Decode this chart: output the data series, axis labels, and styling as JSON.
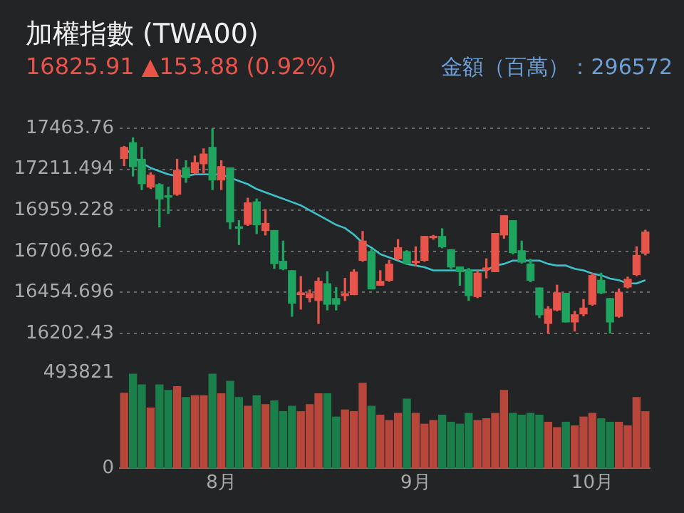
{
  "chart_data": [
    {
      "type": "candlestick",
      "title": "加權指數 (TWA00)",
      "subtitle": "16825.91 ▲153.88 (0.92%)",
      "annotations": [
        "金額（百萬）：296572"
      ],
      "ohlc": [
        [
          17278,
          17352,
          17234,
          17346
        ],
        [
          17375,
          17405,
          17170,
          17228
        ],
        [
          17273,
          17346,
          17087,
          17123
        ],
        [
          17102,
          17190,
          17093,
          17176
        ],
        [
          17117,
          17123,
          16858,
          17029
        ],
        [
          17046,
          17102,
          16940,
          17040
        ],
        [
          17058,
          17273,
          17052,
          17205
        ],
        [
          17220,
          17264,
          17132,
          17161
        ],
        [
          17190,
          17293,
          17184,
          17252
        ],
        [
          17246,
          17337,
          17190,
          17305
        ],
        [
          17346,
          17460,
          17087,
          17146
        ],
        [
          17146,
          17264,
          17087,
          17228
        ],
        [
          17220,
          17220,
          16846,
          16888
        ],
        [
          16858,
          16896,
          16749,
          16849
        ],
        [
          16873,
          17034,
          16867,
          17005
        ],
        [
          17011,
          17029,
          16817,
          16870
        ],
        [
          16835,
          16964,
          16808,
          16879
        ],
        [
          16835,
          16835,
          16602,
          16632
        ],
        [
          16646,
          16770,
          16594,
          16599
        ],
        [
          16588,
          16588,
          16308,
          16388
        ],
        [
          16441,
          16552,
          16352,
          16452
        ],
        [
          16423,
          16470,
          16397,
          16447
        ],
        [
          16405,
          16544,
          16264,
          16523
        ],
        [
          16508,
          16582,
          16347,
          16382
        ],
        [
          16417,
          16485,
          16347,
          16382
        ],
        [
          16435,
          16541,
          16405,
          16447
        ],
        [
          16441,
          16594,
          16441,
          16579
        ],
        [
          16652,
          16829,
          16646,
          16770
        ],
        [
          16705,
          16720,
          16476,
          16476
        ],
        [
          16499,
          16588,
          16499,
          16523
        ],
        [
          16529,
          16652,
          16523,
          16629
        ],
        [
          16661,
          16779,
          16655,
          16729
        ],
        [
          16705,
          16711,
          16626,
          16632
        ],
        [
          16638,
          16735,
          16617,
          16646
        ],
        [
          16652,
          16799,
          16646,
          16799
        ],
        [
          16791,
          16805,
          16782,
          16799
        ],
        [
          16799,
          16846,
          16729,
          16735
        ],
        [
          16717,
          16717,
          16602,
          16611
        ],
        [
          16611,
          16611,
          16499,
          16582
        ],
        [
          16588,
          16602,
          16405,
          16435
        ],
        [
          16429,
          16588,
          16423,
          16573
        ],
        [
          16594,
          16661,
          16544,
          16605
        ],
        [
          16582,
          16817,
          16582,
          16817
        ],
        [
          16808,
          16926,
          16788,
          16926
        ],
        [
          16896,
          16896,
          16691,
          16699
        ],
        [
          16711,
          16770,
          16635,
          16641
        ],
        [
          16629,
          16658,
          16520,
          16529
        ],
        [
          16482,
          16482,
          16300,
          16317
        ],
        [
          16264,
          16367,
          16205,
          16352
        ],
        [
          16347,
          16499,
          16341,
          16452
        ],
        [
          16449,
          16449,
          16273,
          16273
        ],
        [
          16273,
          16338,
          16217,
          16317
        ],
        [
          16323,
          16411,
          16311,
          16358
        ],
        [
          16382,
          16573,
          16376,
          16558
        ],
        [
          16529,
          16573,
          16447,
          16452
        ],
        [
          16417,
          16417,
          16205,
          16273
        ],
        [
          16308,
          16476,
          16302,
          16455
        ],
        [
          16488,
          16549,
          16482,
          16535
        ],
        [
          16564,
          16735,
          16558,
          16682
        ],
        [
          16696,
          16837,
          16685,
          16826
        ]
      ],
      "colors": [
        "#e8534a",
        "#1fa45f",
        "#1fa45f",
        "#e8534a",
        "#1fa45f",
        "#1fa45f",
        "#e8534a",
        "#1fa45f",
        "#e8534a",
        "#e8534a",
        "#1fa45f",
        "#e8534a",
        "#1fa45f",
        "#1fa45f",
        "#e8534a",
        "#1fa45f",
        "#e8534a",
        "#1fa45f",
        "#1fa45f",
        "#1fa45f",
        "#e8534a",
        "#e8534a",
        "#e8534a",
        "#1fa45f",
        "#1fa45f",
        "#e8534a",
        "#e8534a",
        "#e8534a",
        "#1fa45f",
        "#e8534a",
        "#e8534a",
        "#e8534a",
        "#1fa45f",
        "#e8534a",
        "#e8534a",
        "#e8534a",
        "#1fa45f",
        "#1fa45f",
        "#1fa45f",
        "#1fa45f",
        "#e8534a",
        "#e8534a",
        "#e8534a",
        "#e8534a",
        "#1fa45f",
        "#1fa45f",
        "#1fa45f",
        "#1fa45f",
        "#e8534a",
        "#e8534a",
        "#1fa45f",
        "#e8534a",
        "#e8534a",
        "#e8534a",
        "#1fa45f",
        "#1fa45f",
        "#e8534a",
        "#e8534a",
        "#e8534a",
        "#e8534a"
      ],
      "series": [
        {
          "type": "line",
          "color": "#3fc1c9",
          "values": [
            17350,
            17290,
            17250,
            17220,
            17200,
            17180,
            17170,
            17170,
            17180,
            17180,
            17180,
            17180,
            17160,
            17140,
            17120,
            17090,
            17070,
            17050,
            17030,
            17010,
            16990,
            16960,
            16930,
            16900,
            16870,
            16850,
            16810,
            16760,
            16730,
            16690,
            16670,
            16650,
            16630,
            16620,
            16610,
            16590,
            16590,
            16590,
            16590,
            16590,
            16590,
            16590,
            16620,
            16630,
            16650,
            16650,
            16650,
            16650,
            16630,
            16620,
            16620,
            16600,
            16590,
            16570,
            16560,
            16540,
            16530,
            16510,
            16510,
            16530
          ]
        }
      ],
      "ylim": [
        16202.43,
        17463.76
      ],
      "yticks": [
        17463.76,
        17211.494,
        16959.228,
        16706.962,
        16454.696,
        16202.43
      ],
      "grid": "y",
      "tick_labels": "y"
    },
    {
      "type": "bar",
      "categories": [
        null,
        null,
        null,
        null,
        null,
        null,
        null,
        null,
        null,
        null,
        null,
        "8月",
        null,
        null,
        null,
        null,
        null,
        null,
        null,
        null,
        null,
        null,
        null,
        null,
        null,
        null,
        null,
        null,
        null,
        null,
        null,
        null,
        null,
        "9月",
        null,
        null,
        null,
        null,
        null,
        null,
        null,
        null,
        null,
        null,
        null,
        null,
        null,
        null,
        null,
        null,
        null,
        null,
        null,
        "10月",
        null,
        null,
        null,
        null,
        null,
        null
      ],
      "values": [
        389000,
        488000,
        432000,
        312000,
        432000,
        404000,
        423000,
        367000,
        376000,
        376000,
        488000,
        386000,
        451000,
        367000,
        321000,
        376000,
        330000,
        349000,
        293000,
        321000,
        293000,
        330000,
        386000,
        386000,
        265000,
        302000,
        293000,
        441000,
        321000,
        275000,
        247000,
        284000,
        358000,
        284000,
        228000,
        247000,
        275000,
        238000,
        228000,
        284000,
        247000,
        256000,
        284000,
        404000,
        284000,
        275000,
        284000,
        275000,
        238000,
        210000,
        238000,
        219000,
        265000,
        284000,
        256000,
        238000,
        238000,
        219000,
        367000,
        293000
      ],
      "colors": [
        "#b8463b",
        "#1b7f4b",
        "#1b7f4b",
        "#b8463b",
        "#1b7f4b",
        "#1b7f4b",
        "#b8463b",
        "#1b7f4b",
        "#b8463b",
        "#b8463b",
        "#1b7f4b",
        "#b8463b",
        "#1b7f4b",
        "#1b7f4b",
        "#b8463b",
        "#1b7f4b",
        "#b8463b",
        "#1b7f4b",
        "#1b7f4b",
        "#1b7f4b",
        "#b8463b",
        "#b8463b",
        "#b8463b",
        "#1b7f4b",
        "#1b7f4b",
        "#b8463b",
        "#b8463b",
        "#b8463b",
        "#1b7f4b",
        "#b8463b",
        "#b8463b",
        "#b8463b",
        "#1b7f4b",
        "#b8463b",
        "#b8463b",
        "#b8463b",
        "#1b7f4b",
        "#1b7f4b",
        "#1b7f4b",
        "#1b7f4b",
        "#b8463b",
        "#b8463b",
        "#b8463b",
        "#b8463b",
        "#1b7f4b",
        "#1b7f4b",
        "#1b7f4b",
        "#1b7f4b",
        "#b8463b",
        "#b8463b",
        "#1b7f4b",
        "#b8463b",
        "#b8463b",
        "#b8463b",
        "#1b7f4b",
        "#1b7f4b",
        "#b8463b",
        "#b8463b",
        "#b8463b",
        "#b8463b"
      ],
      "ylim": [
        0,
        493821
      ],
      "yticks": [
        0,
        493821
      ]
    }
  ]
}
